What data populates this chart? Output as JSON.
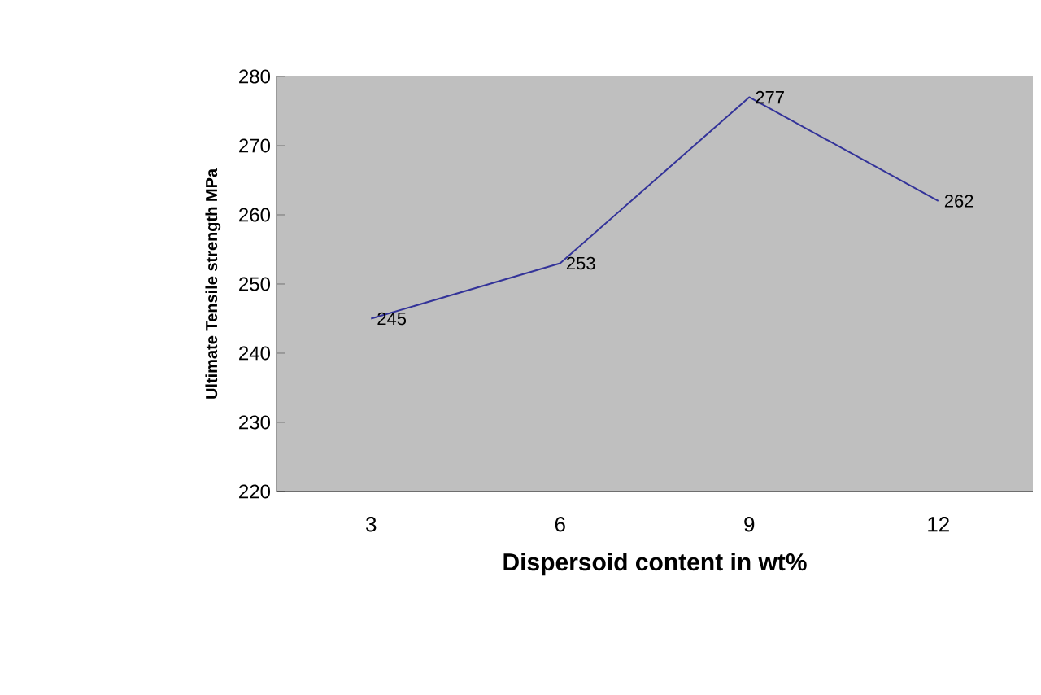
{
  "chart_data": {
    "type": "line",
    "xlabel": "Dispersoid  content in wt%",
    "ylabel": "Ultimate Tensile strength MPa",
    "categories": [
      "3",
      "6",
      "9",
      "12"
    ],
    "values": [
      245,
      253,
      277,
      262
    ],
    "color": "#333399",
    "data_labels": true,
    "ylim": [
      220,
      280
    ],
    "yticks": [
      220,
      230,
      240,
      250,
      260,
      270,
      280
    ],
    "grid": false,
    "marker": "none",
    "line_style": "solid"
  }
}
